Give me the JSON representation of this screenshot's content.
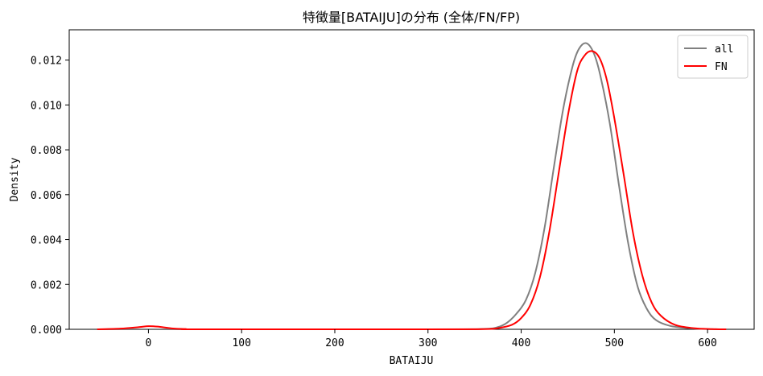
{
  "chart_data": {
    "type": "line",
    "title": "特徴量[BATAIJU]の分布 (全体/FN/FP)",
    "xlabel": "BATAIJU",
    "ylabel": "Density",
    "xlim": [
      -85,
      650
    ],
    "ylim": [
      0,
      0.01335
    ],
    "xticks": [
      0,
      100,
      200,
      300,
      400,
      500,
      600
    ],
    "xtick_labels": [
      "0",
      "100",
      "200",
      "300",
      "400",
      "500",
      "600"
    ],
    "yticks": [
      0,
      0.002,
      0.004,
      0.006,
      0.008,
      0.01,
      0.012
    ],
    "ytick_labels": [
      "0.000",
      "0.002",
      "0.004",
      "0.006",
      "0.008",
      "0.010",
      "0.012"
    ],
    "grid": false,
    "legend_position": "top-right",
    "series": [
      {
        "name": "all",
        "color": "#808080",
        "points": [
          [
            -55,
            0
          ],
          [
            300,
            0
          ],
          [
            360,
            2e-05
          ],
          [
            375,
            0.0001
          ],
          [
            385,
            0.0003
          ],
          [
            395,
            0.0007
          ],
          [
            405,
            0.0013
          ],
          [
            415,
            0.0025
          ],
          [
            425,
            0.0045
          ],
          [
            435,
            0.0072
          ],
          [
            445,
            0.0098
          ],
          [
            455,
            0.0117
          ],
          [
            462,
            0.0125
          ],
          [
            470,
            0.01275
          ],
          [
            478,
            0.0123
          ],
          [
            485,
            0.0113
          ],
          [
            495,
            0.0092
          ],
          [
            505,
            0.0064
          ],
          [
            515,
            0.0038
          ],
          [
            525,
            0.0019
          ],
          [
            535,
            0.0009
          ],
          [
            545,
            0.0004
          ],
          [
            560,
            0.00015
          ],
          [
            580,
            5e-05
          ],
          [
            600,
            1e-05
          ],
          [
            618,
            0
          ]
        ]
      },
      {
        "name": "FN",
        "color": "#ff0000",
        "points": [
          [
            -55,
            0
          ],
          [
            -30,
            3e-05
          ],
          [
            -10,
            0.0001
          ],
          [
            0,
            0.00014
          ],
          [
            10,
            0.00012
          ],
          [
            25,
            4e-05
          ],
          [
            40,
            1e-05
          ],
          [
            60,
            0
          ],
          [
            300,
            0
          ],
          [
            360,
            1e-05
          ],
          [
            375,
            5e-05
          ],
          [
            390,
            0.0002
          ],
          [
            400,
            0.0005
          ],
          [
            410,
            0.0011
          ],
          [
            420,
            0.0023
          ],
          [
            430,
            0.0043
          ],
          [
            440,
            0.0069
          ],
          [
            450,
            0.0095
          ],
          [
            460,
            0.0115
          ],
          [
            468,
            0.0122
          ],
          [
            476,
            0.0124
          ],
          [
            484,
            0.0121
          ],
          [
            492,
            0.0111
          ],
          [
            500,
            0.0094
          ],
          [
            510,
            0.0069
          ],
          [
            520,
            0.0043
          ],
          [
            530,
            0.0024
          ],
          [
            540,
            0.0012
          ],
          [
            550,
            0.0006
          ],
          [
            565,
            0.0002
          ],
          [
            585,
            5e-05
          ],
          [
            605,
            1e-05
          ],
          [
            620,
            0
          ]
        ]
      }
    ]
  }
}
